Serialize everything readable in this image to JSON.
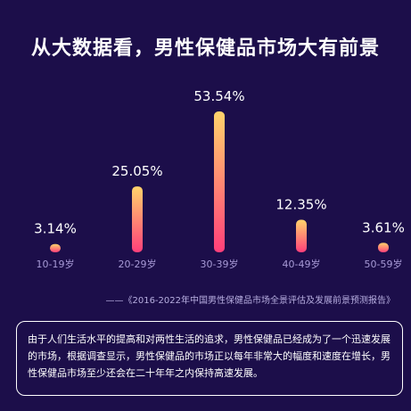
{
  "title": "从大数据看，男性保健品市场大有前景",
  "chart_data": {
    "type": "bar",
    "categories": [
      "10-19岁",
      "20-29岁",
      "30-39岁",
      "40-49岁",
      "50-59岁"
    ],
    "values": [
      3.14,
      25.05,
      53.54,
      12.35,
      3.61
    ],
    "value_labels": [
      "3.14%",
      "25.05%",
      "53.54%",
      "12.35%",
      "3.61%"
    ],
    "unit": "%",
    "title": "",
    "xlabel": "",
    "ylabel": "",
    "grid": false,
    "colors": {
      "bar_top": "#ffd36b",
      "bar_bottom": "#ff3f7a",
      "category_label": "#a79ad6"
    }
  },
  "source": "——《2016-2022年中国男性保健品市场全景评估及发展前景预测报告》",
  "note": "由于人们生活水平的提高和对两性生活的追求，男性保健品已经成为了一个迅速发展的市场，根据调查显示，男性保健品的市场正以每年非常大的幅度和速度在增长，男性保健品市场至少还会在二十年年之内保持高速发展。"
}
